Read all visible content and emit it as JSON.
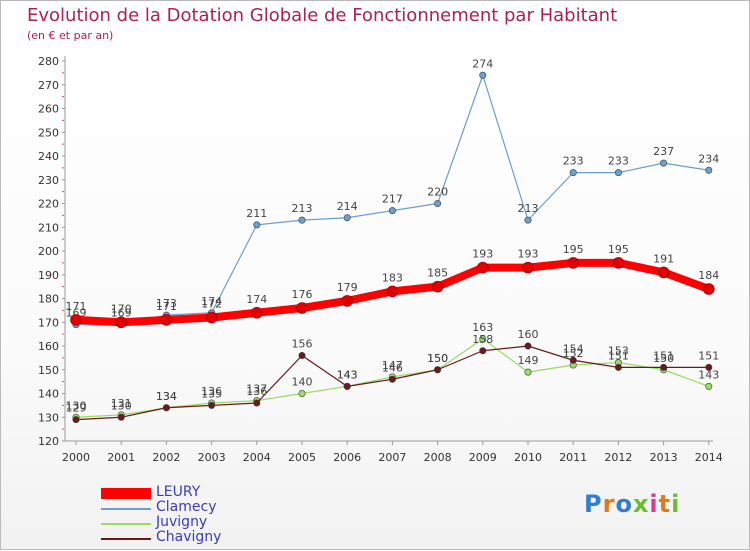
{
  "title": "Evolution de la Dotation Globale de Fonctionnement par Habitant",
  "subtitle": "(en € et par an)",
  "logo": {
    "text": "Proxiti"
  },
  "chart_data": {
    "type": "line",
    "x": [
      "2000",
      "2001",
      "2002",
      "2003",
      "2004",
      "2005",
      "2006",
      "2007",
      "2008",
      "2009",
      "2010",
      "2011",
      "2012",
      "2013",
      "2014"
    ],
    "ylim": [
      120,
      280
    ],
    "yticks": [
      120,
      130,
      140,
      150,
      160,
      170,
      180,
      190,
      200,
      210,
      220,
      230,
      240,
      250,
      260,
      270,
      280
    ],
    "grid": false,
    "legend_position": "bottom-left",
    "series": [
      {
        "name": "LEURY",
        "color": "#ff0000",
        "values": [
          171,
          170,
          171,
          172,
          174,
          176,
          179,
          183,
          185,
          193,
          193,
          195,
          195,
          191,
          184
        ]
      },
      {
        "name": "Clamecy",
        "color": "#6a9fcf",
        "values": [
          169,
          169,
          173,
          174,
          211,
          213,
          214,
          217,
          220,
          274,
          213,
          233,
          233,
          237,
          234
        ]
      },
      {
        "name": "Juvigny",
        "color": "#99dd66",
        "values": [
          130,
          131,
          134,
          136,
          137,
          140,
          143,
          147,
          150,
          163,
          149,
          152,
          153,
          150,
          143
        ]
      },
      {
        "name": "Chavigny",
        "color": "#6a1a1a",
        "values": [
          129,
          130,
          134,
          135,
          136,
          156,
          143,
          146,
          150,
          158,
          160,
          154,
          151,
          151,
          151
        ]
      }
    ]
  }
}
